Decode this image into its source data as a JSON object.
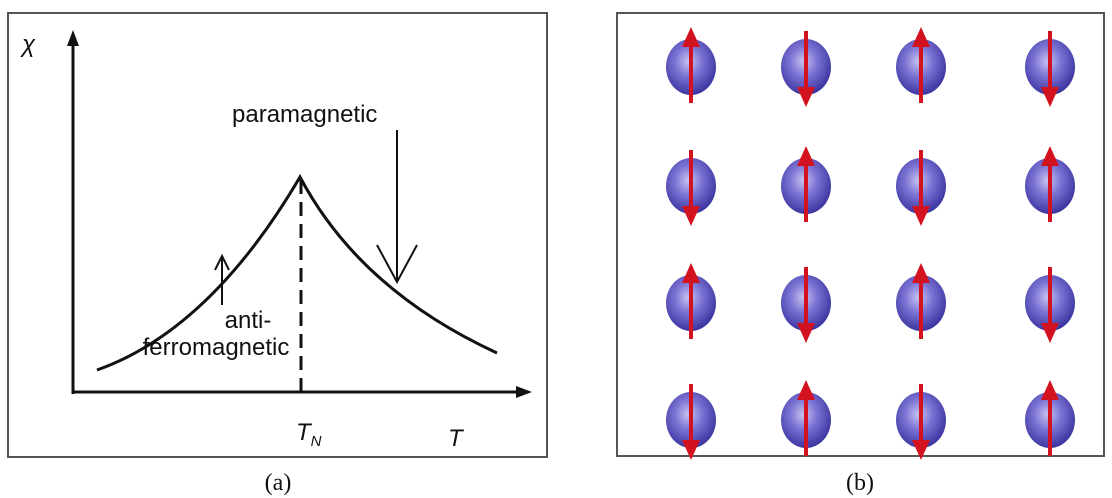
{
  "panel_a": {
    "y_axis_label": "χ",
    "x_axis_label": "T",
    "transition_label": {
      "main": "T",
      "sub": "N"
    },
    "paramagnetic_label": "paramagnetic",
    "antiferro_label": [
      "anti-",
      "ferromagnetic"
    ],
    "caption": "(a)"
  },
  "panel_b": {
    "caption": "(b)"
  }
}
